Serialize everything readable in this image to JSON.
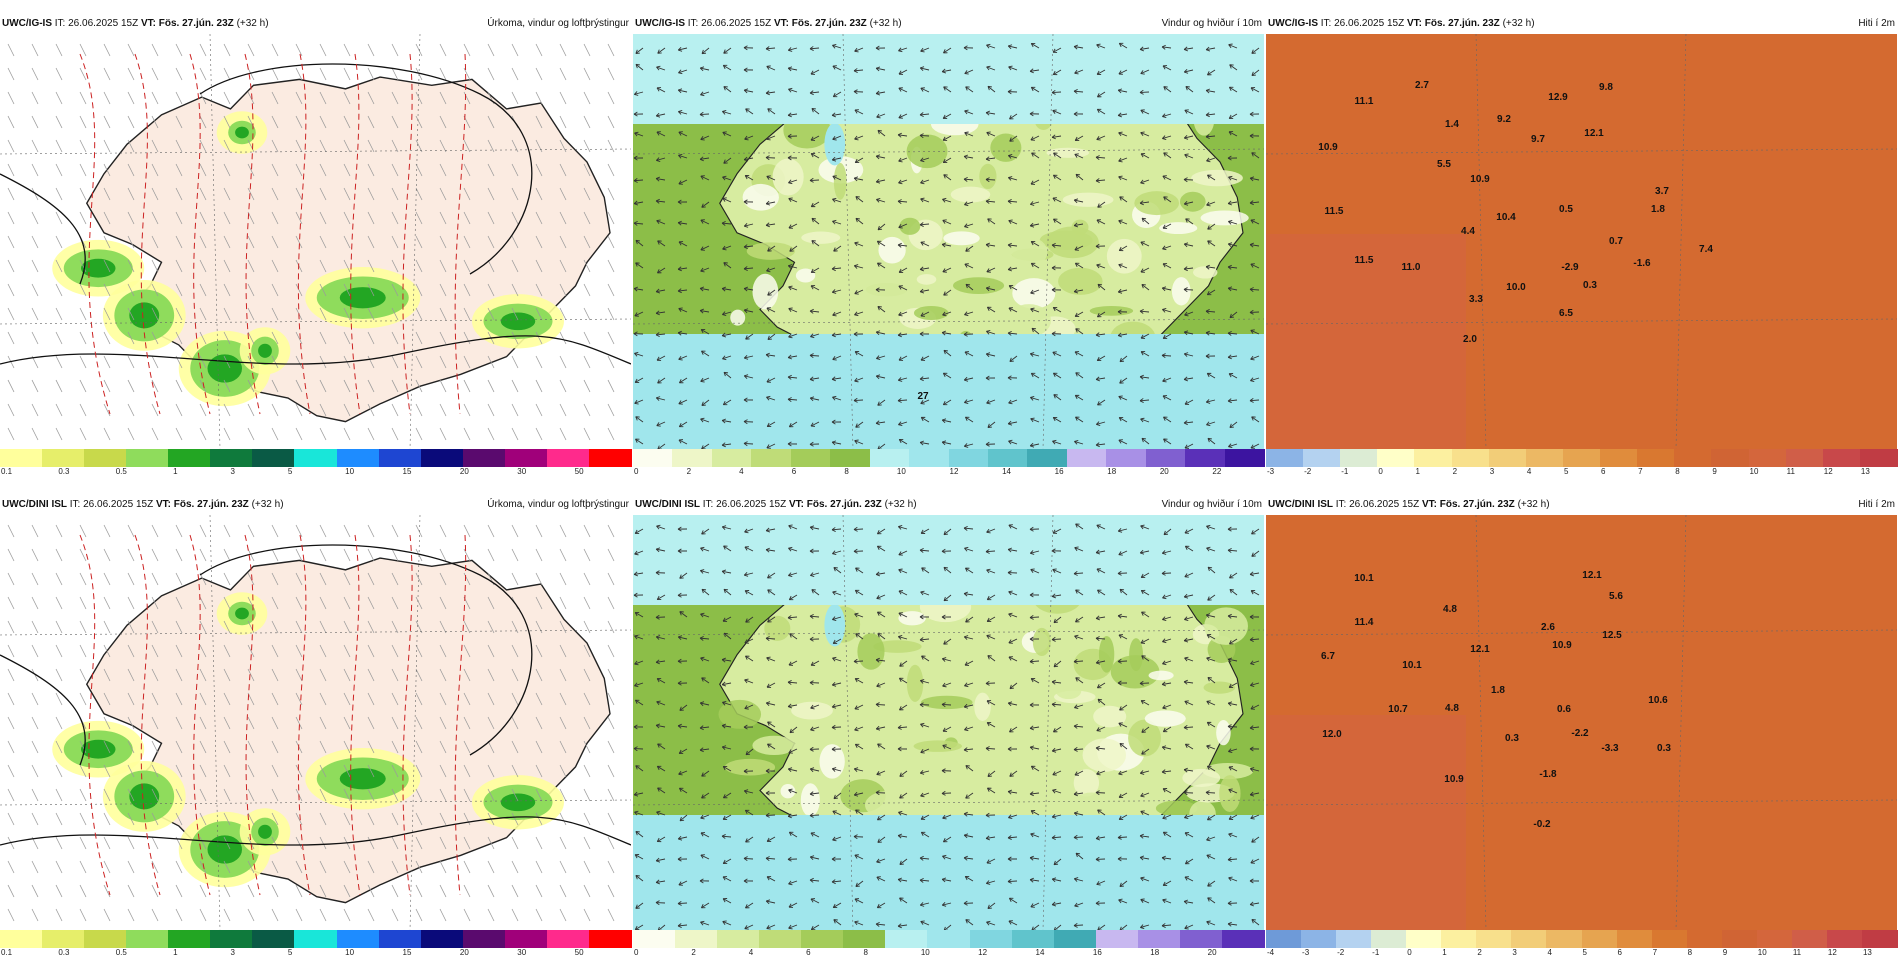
{
  "panels": [
    {
      "id": "p1",
      "model": "UWC/IG-IS",
      "it_label": "IT:",
      "it": "26.06.2025 15Z",
      "vt_label": "VT:",
      "vt": "Fös. 27.jún. 23Z",
      "lead": "(+32 h)",
      "title": "Úrkoma, vindur og loftþrýstingur",
      "kind": "precip",
      "scale_ticks": [
        "0.1",
        "0.3",
        "0.5",
        "1",
        "3",
        "5",
        "10",
        "15",
        "20",
        "30",
        "50"
      ],
      "scale_colors": [
        "#ffff9c",
        "#e6ee6a",
        "#c8d94b",
        "#8fdc5c",
        "#23a623",
        "#0f7a3c",
        "#0a5a45",
        "#19e6d9",
        "#1e8cff",
        "#1e46d2",
        "#0a0a7a",
        "#5a0a6e",
        "#a0007a",
        "#ff2a8c",
        "#ff0000"
      ],
      "labels": []
    },
    {
      "id": "p2",
      "model": "UWC/IG-IS",
      "it_label": "IT:",
      "it": "26.06.2025 15Z",
      "vt_label": "VT:",
      "vt": "Fös. 27.jún. 23Z",
      "lead": "(+32 h)",
      "title": "Vindur og hviður í 10m",
      "kind": "wind",
      "scale_ticks": [
        "0",
        "2",
        "4",
        "6",
        "8",
        "10",
        "12",
        "14",
        "16",
        "18",
        "20",
        "22"
      ],
      "scale_colors": [
        "#fcfdf0",
        "#eef6c8",
        "#d7eca0",
        "#bfdc78",
        "#a4cc5a",
        "#8cbe48",
        "#b8f0f0",
        "#a0e6ec",
        "#80d6e0",
        "#60c4cc",
        "#40aab4",
        "#c8b8f0",
        "#a890e6",
        "#8060d0",
        "#5a30b8",
        "#3c14a0"
      ],
      "labels": [
        "27"
      ]
    },
    {
      "id": "p3",
      "model": "UWC/IG-IS",
      "it_label": "IT:",
      "it": "26.06.2025 15Z",
      "vt_label": "VT:",
      "vt": "Fös. 27.jún. 23Z",
      "lead": "(+32 h)",
      "title": "Hiti í 2m",
      "kind": "temp",
      "scale_ticks": [
        "-3",
        "-2",
        "-1",
        "0",
        "1",
        "2",
        "3",
        "4",
        "5",
        "6",
        "7",
        "8",
        "9",
        "10",
        "11",
        "12",
        "13"
      ],
      "scale_colors": [
        "#8cb4e6",
        "#b4d2f0",
        "#dcecd4",
        "#ffffc8",
        "#fcf0a0",
        "#f8e08c",
        "#f2cd78",
        "#ecb864",
        "#e6a450",
        "#e08c3c",
        "#d97830",
        "#d46a30",
        "#d06434",
        "#d4663c",
        "#d05e48",
        "#c8484a",
        "#c03c44"
      ],
      "labels": [
        "11.1",
        "2.7",
        "10.9",
        "9.2",
        "12.9",
        "9.8",
        "1.4",
        "9.7",
        "5.5",
        "12.1",
        "10.9",
        "11.5",
        "10.4",
        "0.5",
        "3.7",
        "4.4",
        "1.8",
        "11.5",
        "0.7",
        "-1.6",
        "-2.9",
        "7.4",
        "11.0",
        "10.0",
        "3.3",
        "6.5",
        "2.0",
        "0.3"
      ]
    },
    {
      "id": "p4",
      "model": "UWC/DINI ISL",
      "it_label": "IT:",
      "it": "26.06.2025 15Z",
      "vt_label": "VT:",
      "vt": "Fös. 27.jún. 23Z",
      "lead": "(+32 h)",
      "title": "Úrkoma, vindur og loftþrýstingur",
      "kind": "precip",
      "scale_ticks": [
        "0.1",
        "0.3",
        "0.5",
        "1",
        "3",
        "5",
        "10",
        "15",
        "20",
        "30",
        "50"
      ],
      "scale_colors": [
        "#ffff9c",
        "#e6ee6a",
        "#c8d94b",
        "#8fdc5c",
        "#23a623",
        "#0f7a3c",
        "#0a5a45",
        "#19e6d9",
        "#1e8cff",
        "#1e46d2",
        "#0a0a7a",
        "#5a0a6e",
        "#a0007a",
        "#ff2a8c",
        "#ff0000"
      ],
      "labels": []
    },
    {
      "id": "p5",
      "model": "UWC/DINI ISL",
      "it_label": "IT:",
      "it": "26.06.2025 15Z",
      "vt_label": "VT:",
      "vt": "Fös. 27.jún. 23Z",
      "lead": "(+32 h)",
      "title": "Vindur og hviður í 10m",
      "kind": "wind",
      "scale_ticks": [
        "0",
        "2",
        "4",
        "6",
        "8",
        "10",
        "12",
        "14",
        "16",
        "18",
        "20"
      ],
      "scale_colors": [
        "#fcfdf0",
        "#eef6c8",
        "#d7eca0",
        "#bfdc78",
        "#a4cc5a",
        "#8cbe48",
        "#b8f0f0",
        "#a0e6ec",
        "#80d6e0",
        "#60c4cc",
        "#40aab4",
        "#c8b8f0",
        "#a890e6",
        "#8060d0",
        "#5a30b8"
      ],
      "labels": []
    },
    {
      "id": "p6",
      "model": "UWC/DINI ISL",
      "it_label": "IT:",
      "it": "26.06.2025 15Z",
      "vt_label": "VT:",
      "vt": "Fös. 27.jún. 23Z",
      "lead": "(+32 h)",
      "title": "Hiti í 2m",
      "kind": "temp",
      "scale_ticks": [
        "-4",
        "-3",
        "-2",
        "-1",
        "0",
        "1",
        "2",
        "3",
        "4",
        "5",
        "6",
        "7",
        "8",
        "9",
        "10",
        "11",
        "12",
        "13"
      ],
      "scale_colors": [
        "#6e9ad8",
        "#8cb4e6",
        "#b4d2f0",
        "#dcecd4",
        "#ffffc8",
        "#fcf0a0",
        "#f8e08c",
        "#f2cd78",
        "#ecb864",
        "#e6a450",
        "#e08c3c",
        "#d97830",
        "#d46a30",
        "#d06434",
        "#d4663c",
        "#d05e48",
        "#c8484a",
        "#c03c44"
      ],
      "labels": [
        "10.1",
        "12.1",
        "5.6",
        "11.4",
        "4.8",
        "2.6",
        "12.5",
        "6.7",
        "10.1",
        "12.1",
        "10.9",
        "1.8",
        "10.6",
        "10.7",
        "4.8",
        "0.6",
        "12.0",
        "0.3",
        "-2.2",
        "-3.3",
        "0.3",
        "10.9",
        "-1.8",
        "-0.2"
      ]
    }
  ]
}
